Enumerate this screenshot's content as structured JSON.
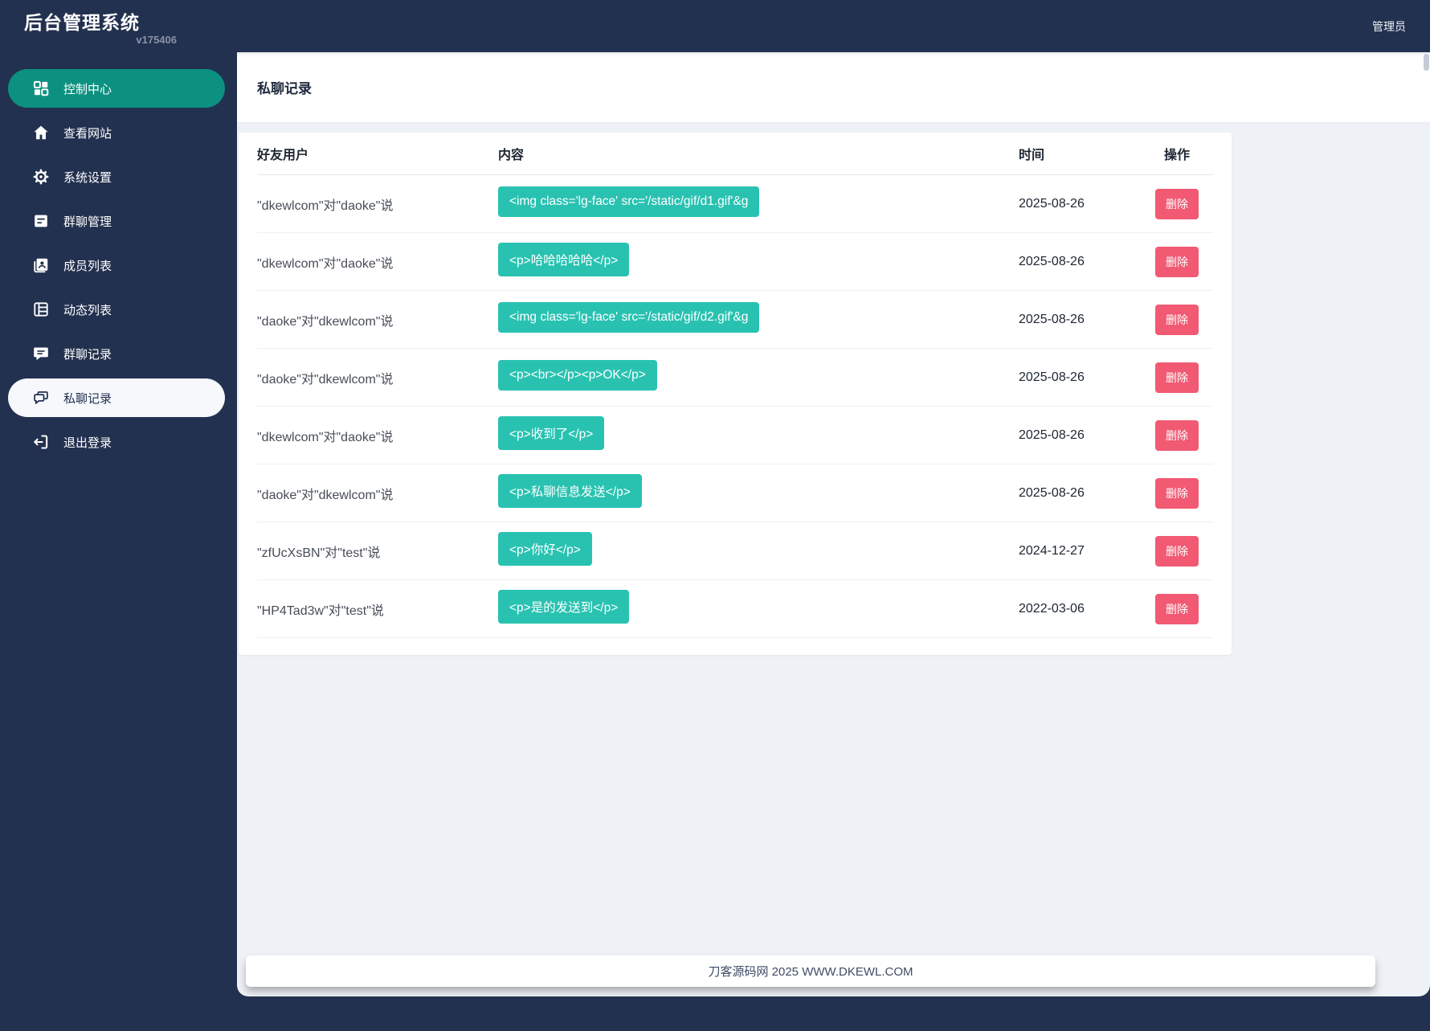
{
  "app": {
    "title": "后台管理系统",
    "version": "v175406",
    "user": "管理员"
  },
  "colors": {
    "navy": "#233150",
    "teal": "#0c9181",
    "badge": "#29c2b1",
    "red": "#f15a72",
    "bg": "#eef1f6"
  },
  "sidebar": {
    "items": [
      {
        "key": "console",
        "label": "控制中心",
        "icon": "grid-icon",
        "state": "active-teal"
      },
      {
        "key": "view-site",
        "label": "查看网站",
        "icon": "home-icon",
        "state": ""
      },
      {
        "key": "system-settings",
        "label": "系统设置",
        "icon": "gear-icon",
        "state": ""
      },
      {
        "key": "group-manage",
        "label": "群聊管理",
        "icon": "document-icon",
        "state": ""
      },
      {
        "key": "member-list",
        "label": "成员列表",
        "icon": "member-card-icon",
        "state": ""
      },
      {
        "key": "activity-list",
        "label": "动态列表",
        "icon": "table-icon",
        "state": ""
      },
      {
        "key": "group-chat-records",
        "label": "群聊记录",
        "icon": "chat-bubble-icon",
        "state": ""
      },
      {
        "key": "private-chat-records",
        "label": "私聊记录",
        "icon": "dual-chat-icon",
        "state": "active-light"
      },
      {
        "key": "logout",
        "label": "退出登录",
        "icon": "logout-icon",
        "state": ""
      }
    ]
  },
  "page": {
    "title": "私聊记录"
  },
  "table": {
    "columns": [
      "好友用户",
      "内容",
      "时间",
      "操作"
    ],
    "delete_label": "删除",
    "rows": [
      {
        "user": "\"dkewlcom\"对\"daoke\"说",
        "content": "<img class='lg-face' src='/static/gif/d1.gif'&g",
        "date": "2025-08-26"
      },
      {
        "user": "\"dkewlcom\"对\"daoke\"说",
        "content": "<p>哈哈哈哈哈</p>",
        "date": "2025-08-26"
      },
      {
        "user": "\"daoke\"对\"dkewlcom\"说",
        "content": "<img class='lg-face' src='/static/gif/d2.gif'&g",
        "date": "2025-08-26"
      },
      {
        "user": "\"daoke\"对\"dkewlcom\"说",
        "content": "<p><br></p><p>OK</p>",
        "date": "2025-08-26"
      },
      {
        "user": "\"dkewlcom\"对\"daoke\"说",
        "content": "<p>收到了</p>",
        "date": "2025-08-26"
      },
      {
        "user": "\"daoke\"对\"dkewlcom\"说",
        "content": "<p>私聊信息发送</p>",
        "date": "2025-08-26"
      },
      {
        "user": "\"zfUcXsBN\"对\"test\"说",
        "content": "<p>你好</p>",
        "date": "2024-12-27"
      },
      {
        "user": "\"HP4Tad3w\"对\"test\"说",
        "content": "<p>是的发送到</p>",
        "date": "2022-03-06"
      }
    ]
  },
  "footer": {
    "text": "刀客源码网 2025 WWW.DKEWL.COM"
  }
}
